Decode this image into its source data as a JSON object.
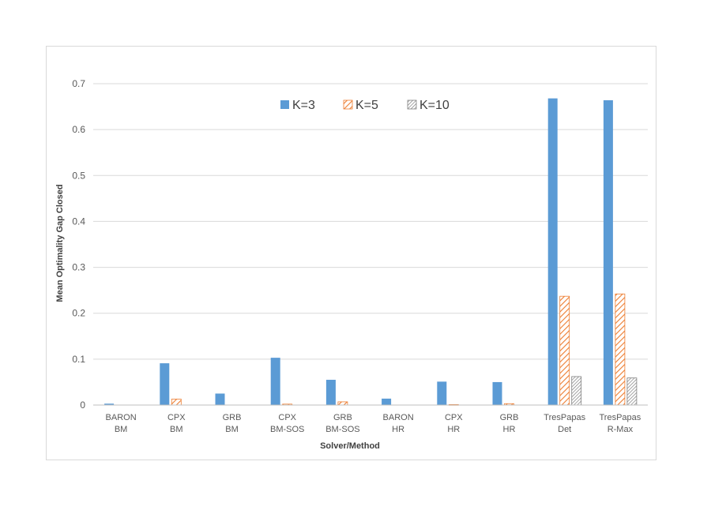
{
  "chart_data": {
    "type": "bar",
    "xlabel": "Solver/Method",
    "ylabel": "Mean Optimality Gap Closed",
    "ylim": [
      0,
      0.7
    ],
    "yticks": [
      "0",
      "0.1",
      "0.2",
      "0.3",
      "0.4",
      "0.5",
      "0.6",
      "0.7"
    ],
    "grid": true,
    "legend_position": "top-center",
    "categories": [
      [
        "BARON",
        "BM"
      ],
      [
        "CPX",
        "BM"
      ],
      [
        "GRB",
        "BM"
      ],
      [
        "CPX",
        "BM-SOS"
      ],
      [
        "GRB",
        "BM-SOS"
      ],
      [
        "BARON",
        "HR"
      ],
      [
        "CPX",
        "HR"
      ],
      [
        "GRB",
        "HR"
      ],
      [
        "TresPapas",
        "Det"
      ],
      [
        "TresPapas",
        "R-Max"
      ]
    ],
    "series": [
      {
        "name": "K=3",
        "color": "#5b9bd5",
        "pattern": "solid",
        "values": [
          0.003,
          0.091,
          0.025,
          0.103,
          0.055,
          0.014,
          0.051,
          0.05,
          0.668,
          0.664
        ]
      },
      {
        "name": "K=5",
        "color": "#ed7d31",
        "pattern": "diagonal-hatch",
        "values": [
          0.0,
          0.013,
          0.0,
          0.002,
          0.007,
          0.0,
          0.001,
          0.003,
          0.237,
          0.242
        ]
      },
      {
        "name": "K=10",
        "color": "#7f7f7f",
        "pattern": "dense-hatch",
        "values": [
          0.0,
          0.0,
          0.0,
          0.0,
          0.0,
          0.0,
          0.0,
          0.0,
          0.062,
          0.059
        ]
      }
    ]
  }
}
